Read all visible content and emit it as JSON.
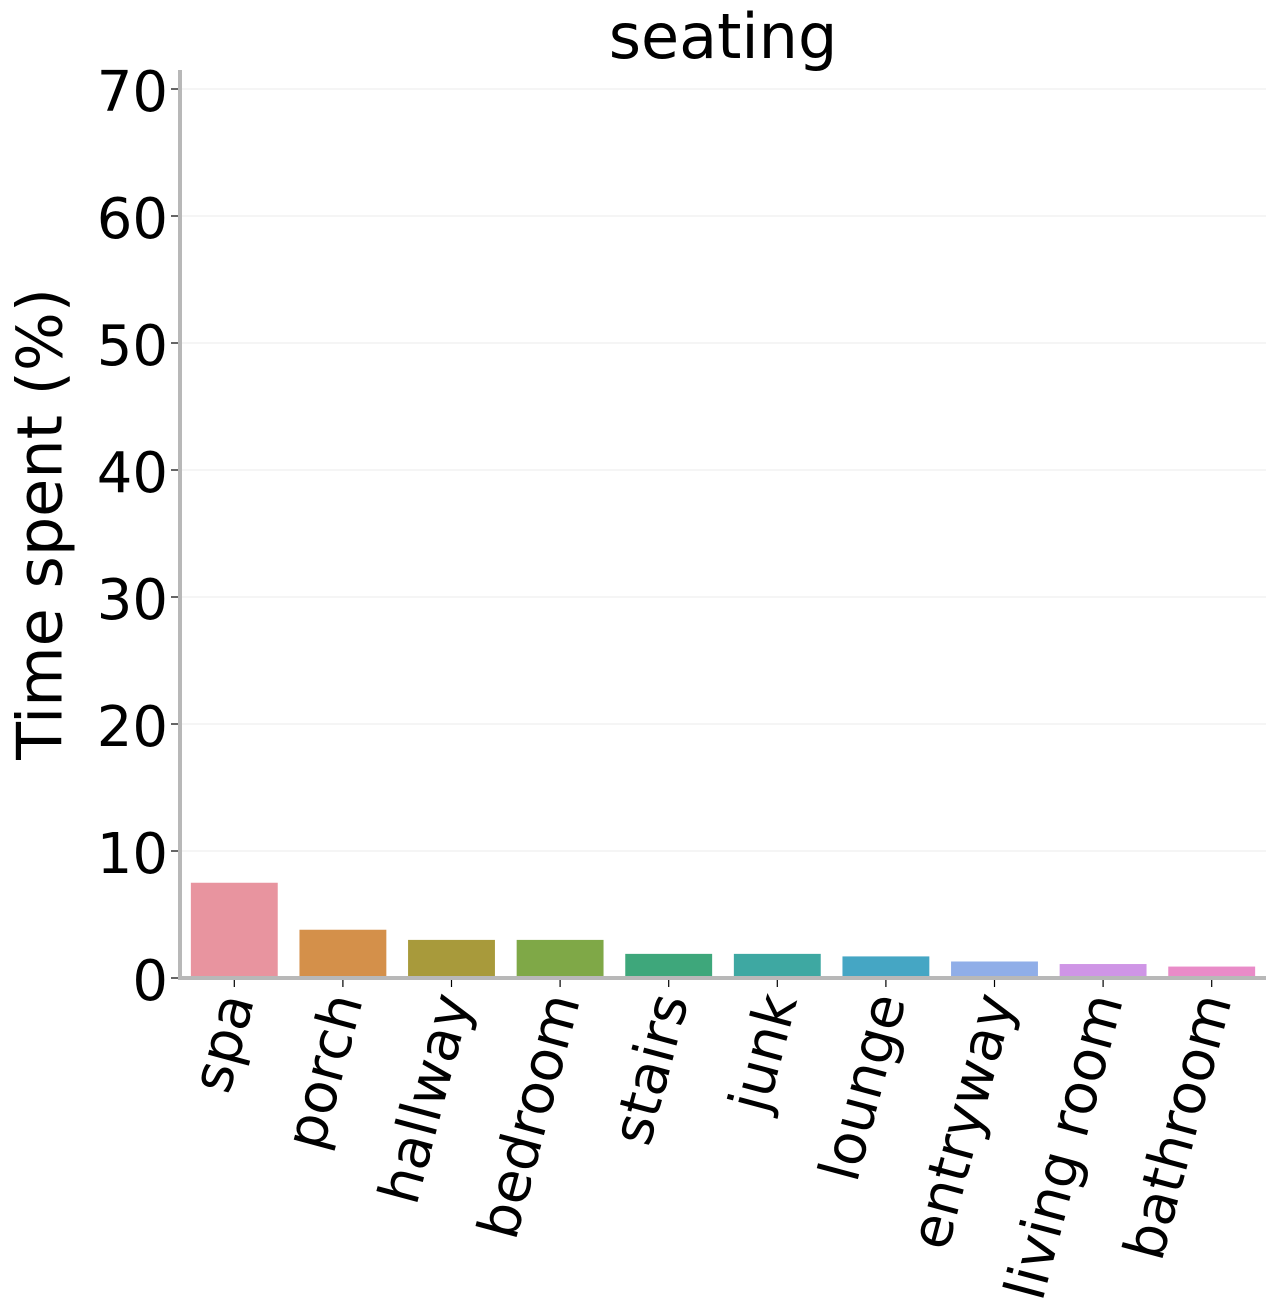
{
  "chart_data": {
    "type": "bar",
    "title": "seating",
    "xlabel": "",
    "ylabel": "Time spent (%)",
    "categories": [
      "spa",
      "porch",
      "hallway",
      "bedroom",
      "stairs",
      "junk",
      "lounge",
      "entryway",
      "living room",
      "bathroom"
    ],
    "values": [
      7.5,
      3.8,
      3.0,
      3.0,
      1.9,
      1.9,
      1.7,
      1.3,
      1.1,
      0.9
    ],
    "colors": [
      "#e8949f",
      "#d4904a",
      "#a89a3b",
      "#7fa847",
      "#3ea77b",
      "#3ea8a2",
      "#45a6c4",
      "#90aee8",
      "#cf95e6",
      "#e98bc8"
    ],
    "ylim": [
      0,
      70
    ],
    "yticks": [
      0,
      10,
      20,
      30,
      40,
      50,
      60,
      70
    ],
    "grid": true,
    "legend": "none"
  }
}
